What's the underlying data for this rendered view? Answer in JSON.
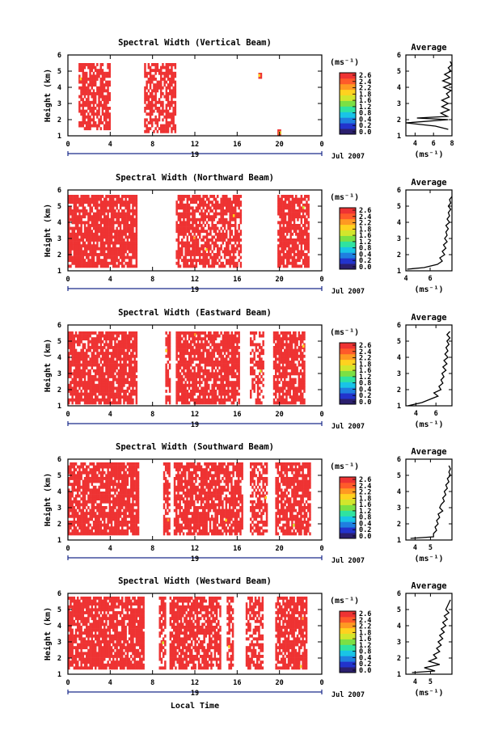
{
  "figure": {
    "unit_label": "(ms⁻¹)",
    "date_label": "Jul 2007",
    "day_label": "19",
    "xlabel_bottom": "Local Time",
    "avg_title": "Average",
    "avg_xlabel": "(ms⁻¹)"
  },
  "colorbar": {
    "ticks": [
      "2.6",
      "2.4",
      "2.2",
      "1.8",
      "1.6",
      "1.2",
      "0.8",
      "0.4",
      "0.2",
      "0.0"
    ],
    "colors": [
      "#2b1f6e",
      "#2233cc",
      "#1f7fe0",
      "#19c4e6",
      "#2fe3a0",
      "#7be044",
      "#d2e62c",
      "#ffd21f",
      "#ff9922",
      "#ff5a2a",
      "#ee3333"
    ]
  },
  "chart_data": [
    {
      "type": "heatmap",
      "title": "Spectral Width (Vertical Beam)",
      "ylabel": "Height (km)",
      "xlabel": "",
      "x_ticks": [
        "0",
        "4",
        "8",
        "12",
        "16",
        "20",
        "0"
      ],
      "y_ticks": [
        "1",
        "2",
        "3",
        "4",
        "5",
        "6"
      ],
      "xlim": [
        0,
        24
      ],
      "ylim": [
        1,
        6
      ],
      "colorbar_label": "(ms⁻¹)",
      "blocks": [
        [
          1.0,
          4.0,
          1.5,
          5.5,
          0.72
        ],
        [
          7.2,
          10.2,
          1.3,
          5.5,
          0.7
        ],
        [
          18.0,
          18.3,
          4.7,
          4.9,
          1.0
        ],
        [
          19.8,
          20.1,
          1.2,
          1.4,
          1.0
        ]
      ],
      "average": {
        "title": "Average",
        "x_ticks": [
          "4",
          "6",
          "8"
        ],
        "xlim": [
          3,
          8
        ],
        "y_ticks": [
          "1",
          "2",
          "3",
          "4",
          "5",
          "6"
        ],
        "ylim": [
          1,
          6
        ],
        "height_km": [
          1.4,
          1.6,
          1.8,
          2.0,
          2.1,
          2.2,
          2.4,
          2.6,
          2.8,
          3.0,
          3.2,
          3.4,
          3.6,
          3.8,
          4.0,
          4.2,
          4.4,
          4.6,
          4.8,
          5.0,
          5.2,
          5.4,
          5.6
        ],
        "width_ms": [
          7.6,
          6.2,
          3.0,
          7.6,
          4.2,
          7.5,
          6.8,
          7.7,
          6.9,
          7.6,
          6.9,
          7.7,
          7.4,
          7.9,
          7.1,
          7.9,
          7.0,
          7.8,
          7.2,
          7.9,
          7.6,
          8.0,
          7.8
        ]
      }
    },
    {
      "type": "heatmap",
      "title": "Spectral Width (Northward Beam)",
      "ylabel": "Height (km)",
      "xlabel": "",
      "x_ticks": [
        "0",
        "4",
        "8",
        "12",
        "16",
        "20",
        "0"
      ],
      "y_ticks": [
        "1",
        "2",
        "3",
        "4",
        "5",
        "6"
      ],
      "xlim": [
        0,
        24
      ],
      "ylim": [
        1,
        6
      ],
      "colorbar_label": "(ms⁻¹)",
      "blocks": [
        [
          0.0,
          6.4,
          1.3,
          5.7,
          0.86
        ],
        [
          10.2,
          16.4,
          1.3,
          5.7,
          0.78
        ],
        [
          19.8,
          22.8,
          1.3,
          5.7,
          0.8
        ]
      ],
      "average": {
        "title": "Average",
        "x_ticks": [
          "4",
          "6"
        ],
        "xlim": [
          4,
          7.8
        ],
        "y_ticks": [
          "1",
          "2",
          "3",
          "4",
          "5",
          "6"
        ],
        "ylim": [
          1,
          6
        ],
        "height_km": [
          1.1,
          1.2,
          1.4,
          1.6,
          1.8,
          2.0,
          2.2,
          2.4,
          2.6,
          2.8,
          3.0,
          3.2,
          3.4,
          3.6,
          3.8,
          4.0,
          4.2,
          4.4,
          4.6,
          4.8,
          5.0,
          5.2,
          5.4,
          5.6
        ],
        "width_ms": [
          4.1,
          5.5,
          6.6,
          7.0,
          6.8,
          7.2,
          7.0,
          7.3,
          7.1,
          7.4,
          7.2,
          7.4,
          7.3,
          7.5,
          7.3,
          7.6,
          7.4,
          7.6,
          7.5,
          7.7,
          7.5,
          7.7,
          7.6,
          7.8
        ]
      }
    },
    {
      "type": "heatmap",
      "title": "Spectral Width (Eastward Beam)",
      "ylabel": "Height (km)",
      "xlabel": "",
      "x_ticks": [
        "0",
        "4",
        "8",
        "12",
        "16",
        "20",
        "0"
      ],
      "y_ticks": [
        "1",
        "2",
        "3",
        "4",
        "5",
        "6"
      ],
      "xlim": [
        0,
        24
      ],
      "ylim": [
        1,
        6
      ],
      "colorbar_label": "(ms⁻¹)",
      "blocks": [
        [
          0.0,
          6.4,
          1.2,
          5.6,
          0.85
        ],
        [
          9.2,
          9.6,
          1.2,
          5.6,
          0.7
        ],
        [
          10.2,
          16.2,
          1.2,
          5.6,
          0.82
        ],
        [
          17.2,
          18.4,
          1.2,
          5.6,
          0.6
        ],
        [
          19.4,
          22.4,
          1.2,
          5.6,
          0.82
        ]
      ],
      "average": {
        "title": "Average",
        "x_ticks": [
          "4",
          "6"
        ],
        "xlim": [
          3,
          7.6
        ],
        "y_ticks": [
          "1",
          "2",
          "3",
          "4",
          "5",
          "6"
        ],
        "ylim": [
          1,
          6
        ],
        "height_km": [
          1.0,
          1.2,
          1.4,
          1.6,
          1.8,
          2.0,
          2.2,
          2.4,
          2.6,
          2.8,
          3.0,
          3.2,
          3.4,
          3.6,
          3.8,
          4.0,
          4.2,
          4.4,
          4.6,
          4.8,
          5.0,
          5.2,
          5.4,
          5.6
        ],
        "width_ms": [
          3.2,
          4.6,
          5.4,
          6.2,
          5.8,
          6.5,
          6.3,
          6.7,
          6.5,
          6.8,
          6.6,
          7.0,
          6.7,
          7.1,
          6.8,
          7.2,
          6.9,
          7.2,
          7.0,
          7.3,
          7.1,
          7.4,
          7.1,
          7.4
        ]
      }
    },
    {
      "type": "heatmap",
      "title": "Spectral Width (Southward Beam)",
      "ylabel": "Height (km)",
      "xlabel": "",
      "x_ticks": [
        "0",
        "4",
        "8",
        "12",
        "16",
        "20",
        "0"
      ],
      "y_ticks": [
        "1",
        "2",
        "3",
        "4",
        "5",
        "6"
      ],
      "xlim": [
        0,
        24
      ],
      "ylim": [
        1,
        6
      ],
      "colorbar_label": "(ms⁻¹)",
      "blocks": [
        [
          0.0,
          6.6,
          1.3,
          5.8,
          0.84
        ],
        [
          9.0,
          9.6,
          1.3,
          5.8,
          0.7
        ],
        [
          10.0,
          16.4,
          1.3,
          5.8,
          0.8
        ],
        [
          17.2,
          18.8,
          1.3,
          5.8,
          0.65
        ],
        [
          19.6,
          22.8,
          1.3,
          5.8,
          0.8
        ]
      ],
      "average": {
        "title": "Average",
        "x_ticks": [
          "4",
          "5"
        ],
        "xlim": [
          3.4,
          6.4
        ],
        "y_ticks": [
          "1",
          "2",
          "3",
          "4",
          "5",
          "6"
        ],
        "ylim": [
          1,
          6
        ],
        "height_km": [
          1.1,
          1.2,
          1.4,
          1.6,
          1.8,
          2.0,
          2.2,
          2.4,
          2.6,
          2.8,
          3.0,
          3.2,
          3.4,
          3.6,
          3.8,
          4.0,
          4.2,
          4.4,
          4.6,
          4.8,
          5.0,
          5.2,
          5.4,
          5.6
        ],
        "width_ms": [
          3.7,
          5.2,
          5.2,
          5.4,
          5.3,
          5.5,
          5.4,
          5.6,
          5.5,
          5.8,
          5.6,
          5.7,
          5.9,
          5.8,
          6.0,
          5.9,
          6.1,
          6.0,
          6.2,
          6.1,
          6.3,
          6.2,
          6.3,
          6.2
        ]
      }
    },
    {
      "type": "heatmap",
      "title": "Spectral Width (Westward Beam)",
      "ylabel": "Height (km)",
      "xlabel": "Local Time",
      "x_ticks": [
        "0",
        "4",
        "8",
        "12",
        "16",
        "20",
        "0"
      ],
      "y_ticks": [
        "1",
        "2",
        "3",
        "4",
        "5",
        "6"
      ],
      "xlim": [
        0,
        24
      ],
      "ylim": [
        1,
        6
      ],
      "colorbar_label": "(ms⁻¹)",
      "blocks": [
        [
          0.0,
          7.2,
          1.3,
          5.8,
          0.84
        ],
        [
          8.6,
          9.2,
          1.3,
          5.8,
          0.7
        ],
        [
          9.6,
          14.4,
          1.3,
          5.8,
          0.76
        ],
        [
          15.0,
          15.6,
          1.3,
          5.8,
          0.6
        ],
        [
          16.8,
          18.4,
          1.3,
          5.8,
          0.65
        ],
        [
          19.6,
          22.6,
          1.3,
          5.8,
          0.8
        ]
      ],
      "average": {
        "title": "Average",
        "x_ticks": [
          "4",
          "5"
        ],
        "xlim": [
          3.4,
          6.4
        ],
        "y_ticks": [
          "1",
          "2",
          "3",
          "4",
          "5",
          "6"
        ],
        "ylim": [
          1,
          6
        ],
        "height_km": [
          1.1,
          1.2,
          1.4,
          1.6,
          1.8,
          2.0,
          2.2,
          2.4,
          2.6,
          2.8,
          3.0,
          3.2,
          3.4,
          3.6,
          3.8,
          4.0,
          4.2,
          4.4,
          4.6,
          4.8,
          5.0,
          5.2,
          5.4,
          5.6
        ],
        "width_ms": [
          3.8,
          5.3,
          4.6,
          5.6,
          4.9,
          5.4,
          5.2,
          5.6,
          5.4,
          5.7,
          5.5,
          5.8,
          5.6,
          5.9,
          5.7,
          6.0,
          5.8,
          6.1,
          5.9,
          6.2,
          6.0,
          6.1,
          6.2,
          6.3
        ]
      }
    }
  ]
}
